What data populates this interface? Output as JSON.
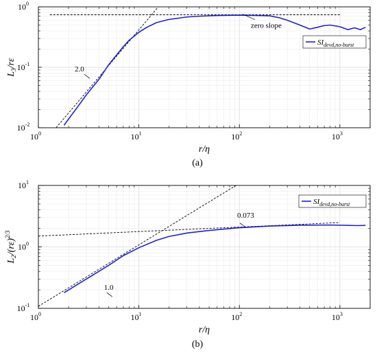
{
  "chart_data": [
    {
      "type": "line",
      "panel_label": "(a)",
      "xlabel": "r/η",
      "ylabel": "L3/rε",
      "xscale": "log",
      "yscale": "log",
      "xlim": [
        1,
        2000
      ],
      "ylim": [
        0.01,
        1
      ],
      "xticks": [
        {
          "v": 1,
          "b": "10",
          "e": "0"
        },
        {
          "v": 10,
          "b": "10",
          "e": "1"
        },
        {
          "v": 100,
          "b": "10",
          "e": "2"
        },
        {
          "v": 1000,
          "b": "10",
          "e": "3"
        }
      ],
      "yticks": [
        {
          "v": 0.01,
          "b": "10",
          "e": "-2"
        },
        {
          "v": 0.1,
          "b": "10",
          "e": "-1"
        },
        {
          "v": 1,
          "b": "10",
          "e": "0"
        }
      ],
      "grid": true,
      "legend_position": "top-right",
      "series": [
        {
          "name": "SI devd,no-burst",
          "color": "#1f1fd6",
          "x": [
            1.8,
            2.0,
            2.5,
            3.0,
            4.0,
            5.0,
            6.0,
            7.0,
            8.0,
            10,
            12,
            15,
            20,
            30,
            40,
            60,
            100,
            150,
            200,
            250,
            300,
            400,
            500,
            600,
            700,
            800,
            1000,
            1200,
            1400,
            1600,
            1800
          ],
          "y": [
            0.011,
            0.014,
            0.023,
            0.035,
            0.063,
            0.11,
            0.16,
            0.22,
            0.28,
            0.38,
            0.46,
            0.55,
            0.62,
            0.68,
            0.7,
            0.72,
            0.73,
            0.72,
            0.71,
            0.66,
            0.6,
            0.5,
            0.43,
            0.46,
            0.49,
            0.5,
            0.47,
            0.42,
            0.45,
            0.42,
            0.46
          ]
        }
      ],
      "reference_lines": [
        {
          "x": [
            1.5,
            16
          ],
          "y": [
            0.01,
            1.05
          ],
          "label": "2.0",
          "label_x": 2.3,
          "label_y": 0.085
        },
        {
          "x": [
            1.3,
            1000
          ],
          "y": [
            0.74,
            0.74
          ],
          "label": "zero slope",
          "label_x": 130,
          "label_y": 0.45
        }
      ]
    },
    {
      "type": "line",
      "panel_label": "(b)",
      "xlabel": "r/η",
      "ylabel": "L2/(rε)2/3",
      "xscale": "log",
      "yscale": "log",
      "xlim": [
        1,
        2000
      ],
      "ylim": [
        0.1,
        10
      ],
      "xticks": [
        {
          "v": 1,
          "b": "10",
          "e": "0"
        },
        {
          "v": 10,
          "b": "10",
          "e": "1"
        },
        {
          "v": 100,
          "b": "10",
          "e": "2"
        },
        {
          "v": 1000,
          "b": "10",
          "e": "3"
        }
      ],
      "yticks": [
        {
          "v": 0.1,
          "b": "10",
          "e": "-1"
        },
        {
          "v": 1,
          "b": "10",
          "e": "0"
        },
        {
          "v": 10,
          "b": "10",
          "e": "1"
        }
      ],
      "grid": true,
      "legend_position": "top-right",
      "series": [
        {
          "name": "SI devd,no-burst",
          "color": "#1f1fd6",
          "x": [
            1.8,
            2.5,
            3.5,
            5,
            7,
            10,
            15,
            20,
            30,
            50,
            100,
            200,
            400,
            800,
            1500,
            1800
          ],
          "y": [
            0.18,
            0.25,
            0.35,
            0.5,
            0.72,
            0.97,
            1.28,
            1.48,
            1.68,
            1.85,
            2.05,
            2.18,
            2.25,
            2.27,
            2.22,
            2.24
          ]
        }
      ],
      "reference_lines": [
        {
          "x": [
            1,
            100
          ],
          "y": [
            0.108,
            10.8
          ],
          "label": "1.0",
          "label_x": 4.5,
          "label_y": 0.2
        },
        {
          "x": [
            1,
            1000
          ],
          "y": [
            1.5,
            2.49
          ],
          "label": "0.073",
          "label_x": 95,
          "label_y": 3.0
        }
      ]
    }
  ]
}
